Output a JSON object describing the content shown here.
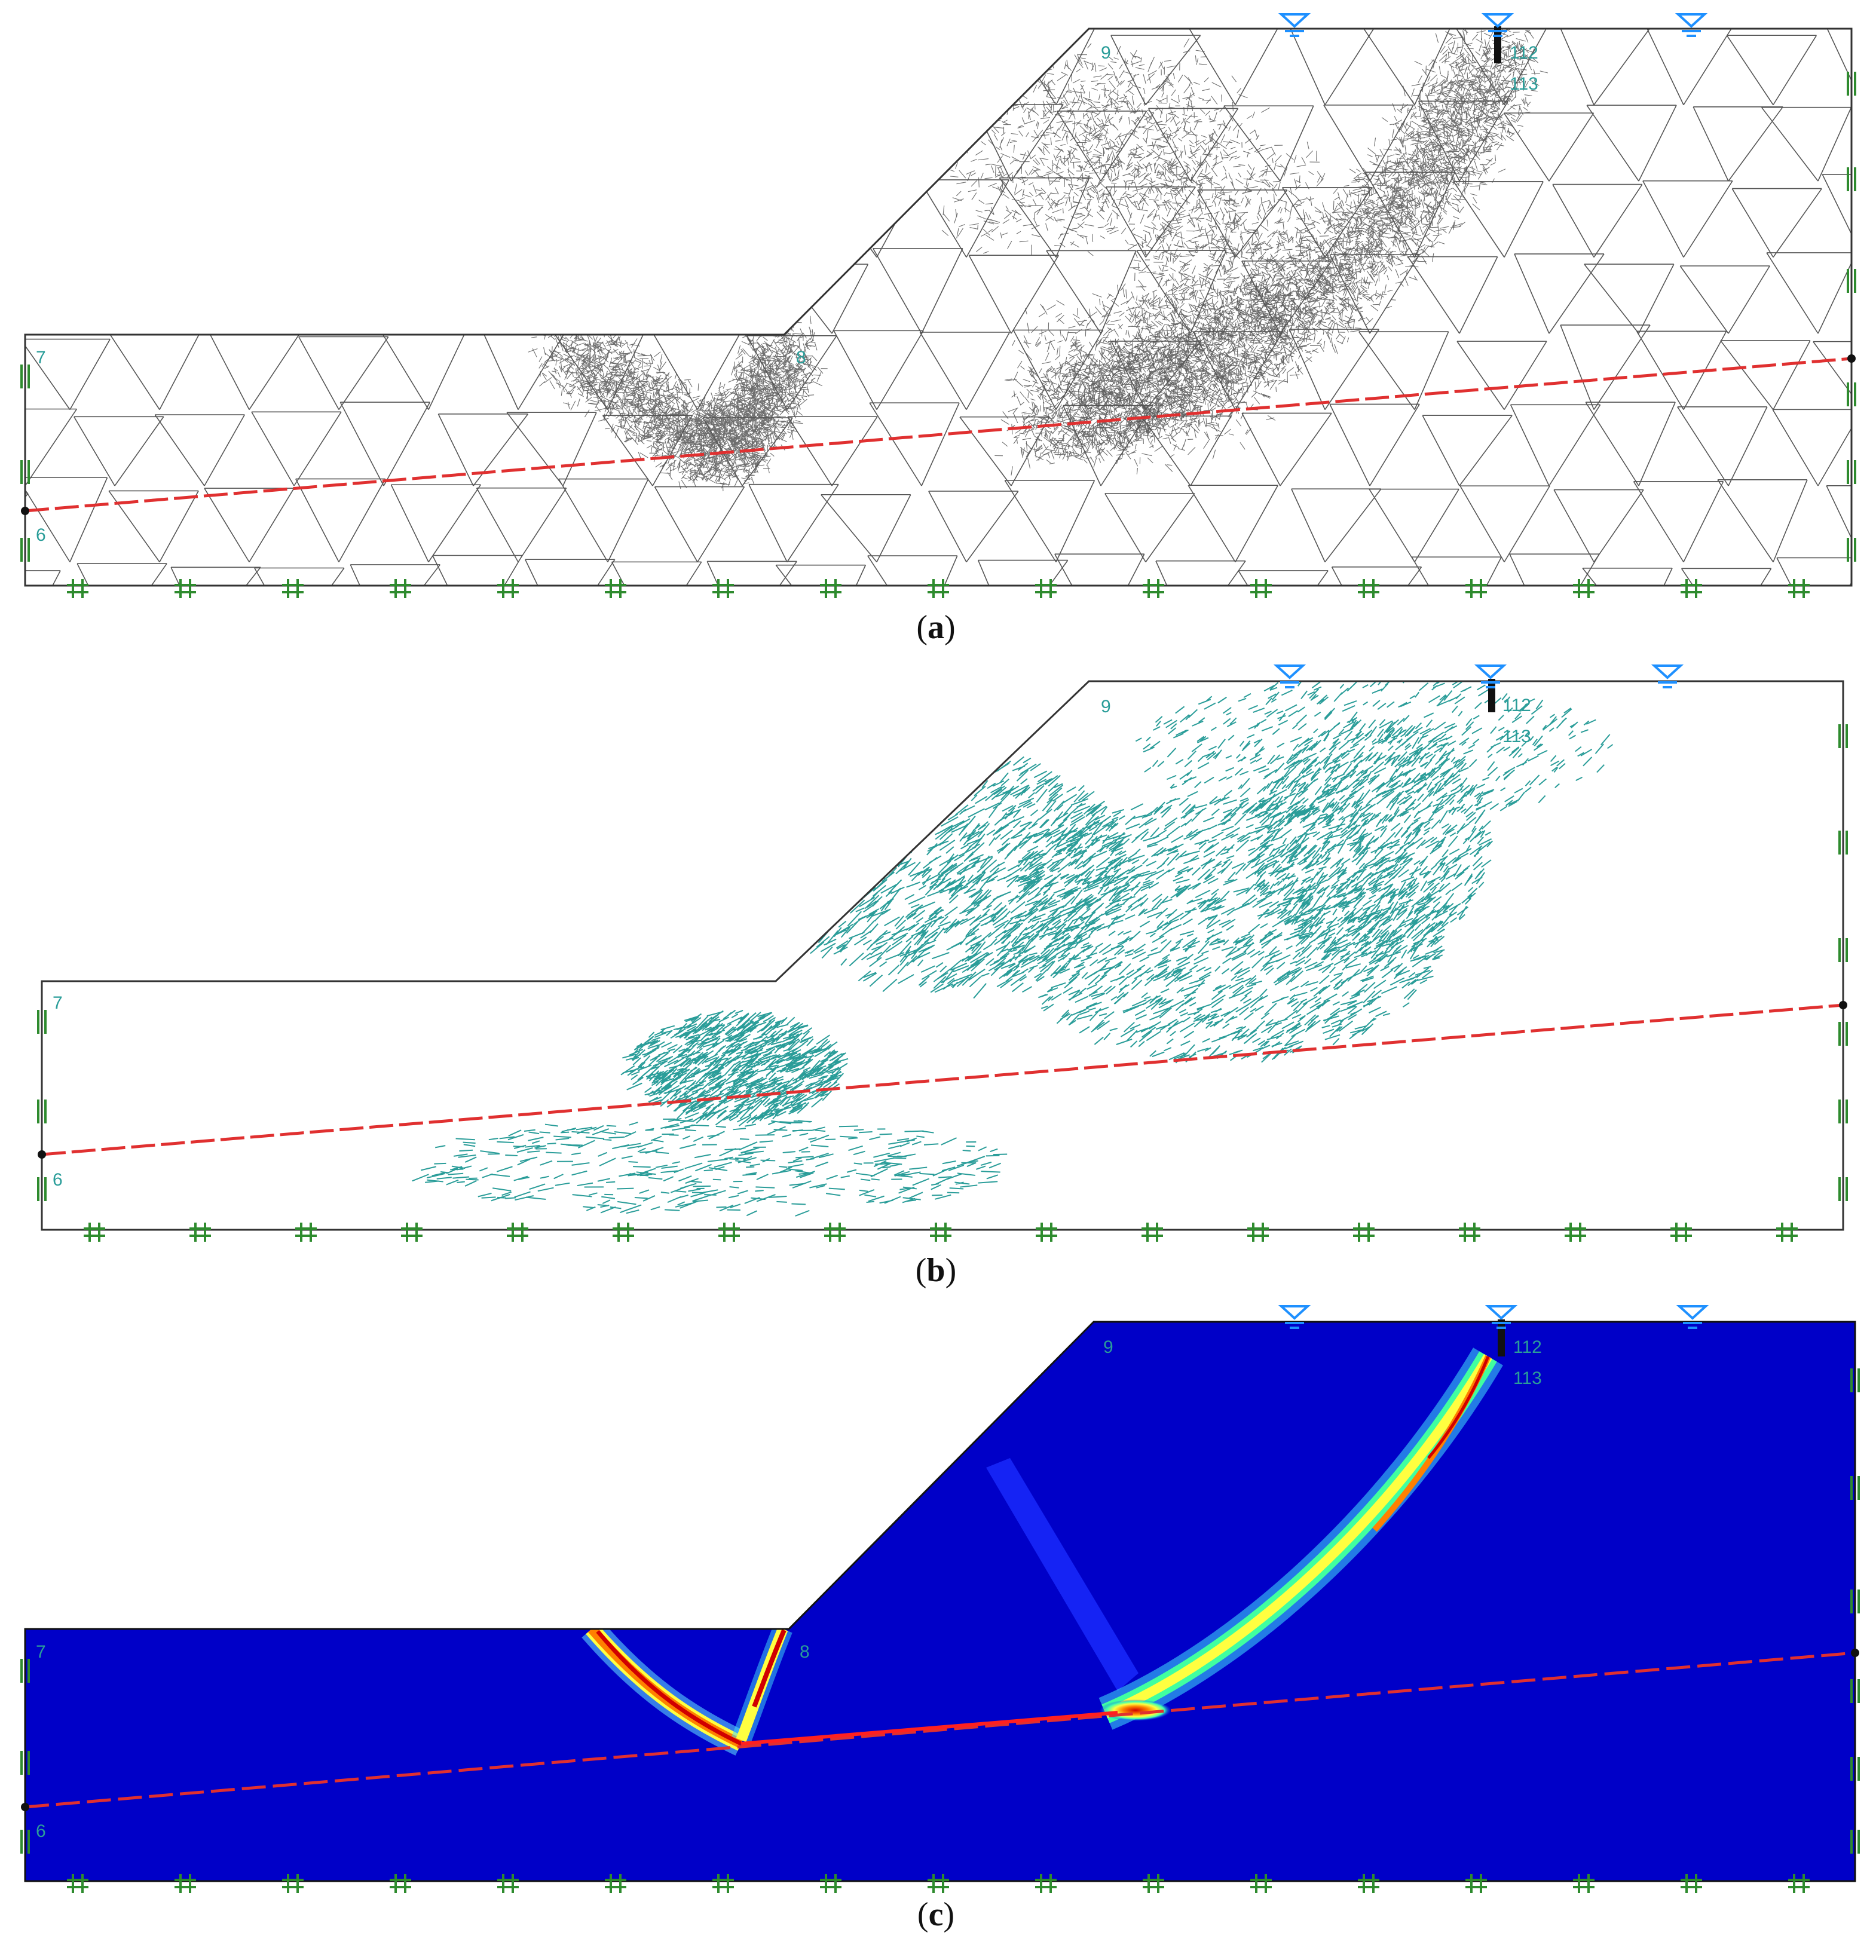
{
  "panels": [
    {
      "id": "a",
      "caption_letter": "a",
      "type": "mesh"
    },
    {
      "id": "b",
      "caption_letter": "b",
      "type": "displacement-vectors"
    },
    {
      "id": "c",
      "caption_letter": "c",
      "type": "shear-strain-contours"
    }
  ],
  "labels": {
    "a": {
      "left_top": "7",
      "left_bottom": "6",
      "crest": "9",
      "toe": "8",
      "anchor_top": "112",
      "anchor_bottom": "113"
    },
    "b": {
      "left_top": "7",
      "left_bottom": "6",
      "crest": "9",
      "anchor_top": "112",
      "anchor_bottom": "113"
    },
    "c": {
      "left_top": "7",
      "left_bottom": "6",
      "crest": "9",
      "toe": "8",
      "anchor_top": "112",
      "anchor_bottom": "113"
    }
  },
  "colors": {
    "mesh_line": "#555555",
    "vector": "#2a9d99",
    "weak_layer": "#e03030",
    "support": "#2e8b2e",
    "water_table": "#1e90ff",
    "contour_background": "#0000c8",
    "boundary": "#333333",
    "label": "#2a9d99"
  },
  "icons": [
    "water-table-icon",
    "fixed-support-icon",
    "roller-support-icon",
    "anchor-icon"
  ]
}
